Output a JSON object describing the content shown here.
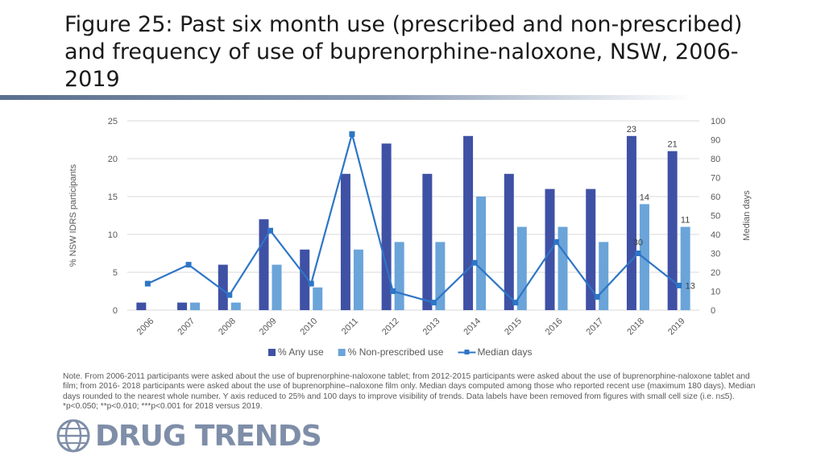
{
  "title": "Figure 25: Past six month use (prescribed and non-prescribed) and frequency of use of buprenorphine-naloxone, NSW, 2006-2019",
  "note": "Note. From 2006-2011 participants were asked about the use of buprenorphine-naloxone tablet; from 2012-2015 participants were asked about the use of buprenorphine-naloxone tablet and film; from 2016- 2018 participants were asked about the use of buprenorphine–naloxone film only. Median days computed among those who reported recent use (maximum 180 days). Median days rounded to the nearest whole number. Y axis reduced to 25% and 100 days to improve visibility of trends. Data labels have been removed from figures with small cell size (i.e. n≤5). *p<0.050; **p<0.010; ***p<0.001 for 2018 versus 2019.",
  "logo": {
    "text": "DRUG TRENDS",
    "icon": "globe-icon"
  },
  "chart_data": {
    "type": "bar",
    "categories": [
      "2006",
      "2007",
      "2008",
      "2009",
      "2010",
      "2011",
      "2012",
      "2013",
      "2014",
      "2015",
      "2016",
      "2017",
      "2018",
      "2019"
    ],
    "ylabel": "% NSW IDRS participants",
    "y2label": "Median days",
    "ylim": [
      0,
      25
    ],
    "y2lim": [
      0,
      100
    ],
    "yticks": [
      0,
      5,
      10,
      15,
      20,
      25
    ],
    "y2ticks": [
      0,
      10,
      20,
      30,
      40,
      50,
      60,
      70,
      80,
      90,
      100
    ],
    "legend_position": "bottom",
    "grid": true,
    "series": [
      {
        "name": "% Any use",
        "type": "bar",
        "axis": "left",
        "color": "#3f51a5",
        "values": [
          1,
          1,
          6,
          12,
          8,
          18,
          22,
          18,
          23,
          18,
          16,
          16,
          23,
          21
        ],
        "labels": [
          "",
          "",
          "",
          "",
          "",
          "",
          "",
          "",
          "",
          "",
          "",
          "",
          "23",
          "21"
        ]
      },
      {
        "name": "% Non-prescribed use",
        "type": "bar",
        "axis": "left",
        "color": "#6aa4d9",
        "values": [
          0,
          1,
          1,
          6,
          3,
          8,
          9,
          9,
          15,
          11,
          11,
          9,
          14,
          11
        ],
        "labels": [
          "",
          "",
          "",
          "",
          "",
          "",
          "",
          "",
          "",
          "",
          "",
          "",
          "14",
          "11"
        ]
      },
      {
        "name": "Median days",
        "type": "line",
        "axis": "right",
        "color": "#2e75c6",
        "values": [
          14,
          24,
          8,
          42,
          14,
          93,
          10,
          4,
          25,
          4,
          36,
          7,
          30,
          13
        ],
        "labels": [
          "",
          "",
          "",
          "",
          "",
          "",
          "",
          "",
          "",
          "",
          "",
          "",
          "30",
          "13"
        ]
      }
    ]
  }
}
